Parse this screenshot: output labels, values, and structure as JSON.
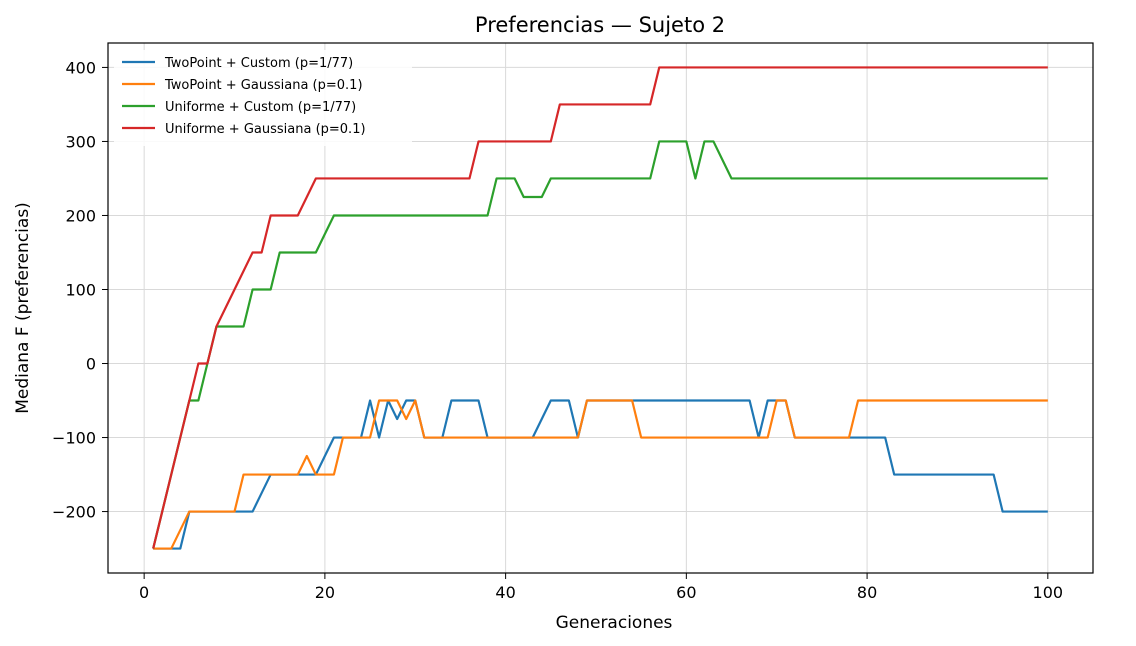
{
  "chart_data": {
    "type": "line",
    "title": "Preferencias — Sujeto 2",
    "xlabel": "Generaciones",
    "ylabel": "Mediana F (preferencias)",
    "xlim": [
      -4,
      105
    ],
    "ylim": [
      -283,
      433
    ],
    "xticks": [
      0,
      20,
      40,
      60,
      80,
      100
    ],
    "yticks": [
      -200,
      -100,
      0,
      100,
      200,
      300,
      400
    ],
    "grid": true,
    "legend_position": "upper-left",
    "series": [
      {
        "name": "TwoPoint + Custom (p=1/77)",
        "color": "#1f77b4",
        "points": [
          [
            1,
            -250
          ],
          [
            2,
            -250
          ],
          [
            3,
            -250
          ],
          [
            4,
            -250
          ],
          [
            5,
            -200
          ],
          [
            6,
            -200
          ],
          [
            7,
            -200
          ],
          [
            8,
            -200
          ],
          [
            9,
            -200
          ],
          [
            10,
            -200
          ],
          [
            11,
            -200
          ],
          [
            12,
            -200
          ],
          [
            13,
            -175
          ],
          [
            14,
            -150
          ],
          [
            15,
            -150
          ],
          [
            16,
            -150
          ],
          [
            17,
            -150
          ],
          [
            18,
            -150
          ],
          [
            19,
            -150
          ],
          [
            20,
            -125
          ],
          [
            21,
            -100
          ],
          [
            22,
            -100
          ],
          [
            23,
            -100
          ],
          [
            24,
            -100
          ],
          [
            25,
            -50
          ],
          [
            26,
            -100
          ],
          [
            27,
            -50
          ],
          [
            28,
            -75
          ],
          [
            29,
            -50
          ],
          [
            30,
            -50
          ],
          [
            31,
            -100
          ],
          [
            32,
            -100
          ],
          [
            33,
            -100
          ],
          [
            34,
            -50
          ],
          [
            35,
            -50
          ],
          [
            36,
            -50
          ],
          [
            37,
            -50
          ],
          [
            38,
            -100
          ],
          [
            39,
            -100
          ],
          [
            40,
            -100
          ],
          [
            41,
            -100
          ],
          [
            42,
            -100
          ],
          [
            43,
            -100
          ],
          [
            44,
            -75
          ],
          [
            45,
            -50
          ],
          [
            46,
            -50
          ],
          [
            47,
            -50
          ],
          [
            48,
            -100
          ],
          [
            48.01,
            -100
          ],
          [
            49,
            -50
          ],
          [
            50,
            -50
          ],
          [
            51,
            -50
          ],
          [
            52,
            -50
          ],
          [
            53,
            -50
          ],
          [
            54,
            -50
          ],
          [
            55,
            -50
          ],
          [
            56,
            -50
          ],
          [
            57,
            -50
          ],
          [
            58,
            -50
          ],
          [
            59,
            -50
          ],
          [
            60,
            -50
          ],
          [
            61,
            -50
          ],
          [
            62,
            -50
          ],
          [
            63,
            -50
          ],
          [
            64,
            -50
          ],
          [
            65,
            -50
          ],
          [
            66,
            -50
          ],
          [
            67,
            -50
          ],
          [
            68,
            -100
          ],
          [
            69,
            -50
          ],
          [
            70,
            -50
          ],
          [
            71,
            -50
          ],
          [
            72,
            -100
          ],
          [
            73,
            -100
          ],
          [
            74,
            -100
          ],
          [
            75,
            -100
          ],
          [
            76,
            -100
          ],
          [
            77,
            -100
          ],
          [
            78,
            -100
          ],
          [
            79,
            -100
          ],
          [
            80,
            -100
          ],
          [
            81,
            -100
          ],
          [
            82,
            -100
          ],
          [
            83,
            -150
          ],
          [
            84,
            -150
          ],
          [
            85,
            -150
          ],
          [
            86,
            -150
          ],
          [
            87,
            -150
          ],
          [
            88,
            -150
          ],
          [
            89,
            -150
          ],
          [
            90,
            -150
          ],
          [
            91,
            -150
          ],
          [
            92,
            -150
          ],
          [
            93,
            -150
          ],
          [
            94,
            -150
          ],
          [
            95,
            -200
          ],
          [
            96,
            -200
          ],
          [
            97,
            -200
          ],
          [
            98,
            -200
          ],
          [
            99,
            -200
          ],
          [
            100,
            -200
          ]
        ]
      },
      {
        "name": "TwoPoint + Gaussiana (p=0.1)",
        "color": "#ff7f0e",
        "points": [
          [
            1,
            -250
          ],
          [
            2,
            -250
          ],
          [
            3,
            -250
          ],
          [
            4,
            -225
          ],
          [
            5,
            -200
          ],
          [
            6,
            -200
          ],
          [
            7,
            -200
          ],
          [
            8,
            -200
          ],
          [
            9,
            -200
          ],
          [
            10,
            -200
          ],
          [
            11,
            -150
          ],
          [
            12,
            -150
          ],
          [
            13,
            -150
          ],
          [
            14,
            -150
          ],
          [
            15,
            -150
          ],
          [
            16,
            -150
          ],
          [
            17,
            -150
          ],
          [
            18,
            -125
          ],
          [
            19,
            -150
          ],
          [
            20,
            -150
          ],
          [
            21,
            -150
          ],
          [
            22,
            -100
          ],
          [
            23,
            -100
          ],
          [
            24,
            -100
          ],
          [
            25,
            -100
          ],
          [
            26,
            -50
          ],
          [
            27,
            -50
          ],
          [
            28,
            -50
          ],
          [
            29,
            -75
          ],
          [
            30,
            -50
          ],
          [
            31,
            -100
          ],
          [
            32,
            -100
          ],
          [
            33,
            -100
          ],
          [
            34,
            -100
          ],
          [
            35,
            -100
          ],
          [
            36,
            -100
          ],
          [
            37,
            -100
          ],
          [
            38,
            -100
          ],
          [
            39,
            -100
          ],
          [
            40,
            -100
          ],
          [
            41,
            -100
          ],
          [
            42,
            -100
          ],
          [
            43,
            -100
          ],
          [
            44,
            -100
          ],
          [
            45,
            -100
          ],
          [
            46,
            -100
          ],
          [
            47,
            -100
          ],
          [
            48,
            -100
          ],
          [
            49,
            -50
          ],
          [
            50,
            -50
          ],
          [
            51,
            -50
          ],
          [
            52,
            -50
          ],
          [
            53,
            -50
          ],
          [
            54,
            -50
          ],
          [
            55,
            -100
          ],
          [
            56,
            -100
          ],
          [
            57,
            -100
          ],
          [
            58,
            -100
          ],
          [
            59,
            -100
          ],
          [
            60,
            -100
          ],
          [
            61,
            -100
          ],
          [
            62,
            -100
          ],
          [
            63,
            -100
          ],
          [
            64,
            -100
          ],
          [
            65,
            -100
          ],
          [
            66,
            -100
          ],
          [
            67,
            -100
          ],
          [
            68,
            -100
          ],
          [
            69,
            -100
          ],
          [
            70,
            -50
          ],
          [
            71,
            -50
          ],
          [
            72,
            -100
          ],
          [
            73,
            -100
          ],
          [
            74,
            -100
          ],
          [
            75,
            -100
          ],
          [
            76,
            -100
          ],
          [
            77,
            -100
          ],
          [
            78,
            -100
          ],
          [
            79,
            -50
          ],
          [
            80,
            -50
          ],
          [
            81,
            -50
          ],
          [
            82,
            -50
          ],
          [
            83,
            -50
          ],
          [
            84,
            -50
          ],
          [
            85,
            -50
          ],
          [
            86,
            -50
          ],
          [
            87,
            -50
          ],
          [
            88,
            -50
          ],
          [
            89,
            -50
          ],
          [
            90,
            -50
          ],
          [
            91,
            -50
          ],
          [
            92,
            -50
          ],
          [
            93,
            -50
          ],
          [
            94,
            -50
          ],
          [
            95,
            -50
          ],
          [
            96,
            -50
          ],
          [
            97,
            -50
          ],
          [
            98,
            -50
          ],
          [
            99,
            -50
          ],
          [
            100,
            -50
          ]
        ]
      },
      {
        "name": "Uniforme + Custom (p=1/77)",
        "color": "#2ca02c",
        "points": [
          [
            1,
            -250
          ],
          [
            2,
            -200
          ],
          [
            3,
            -150
          ],
          [
            4,
            -100
          ],
          [
            5,
            -50
          ],
          [
            6,
            -50
          ],
          [
            7,
            0
          ],
          [
            8,
            50
          ],
          [
            9,
            50
          ],
          [
            10,
            50
          ],
          [
            11,
            50
          ],
          [
            12,
            100
          ],
          [
            13,
            100
          ],
          [
            14,
            100
          ],
          [
            15,
            150
          ],
          [
            16,
            150
          ],
          [
            17,
            150
          ],
          [
            18,
            150
          ],
          [
            19,
            150
          ],
          [
            20,
            175
          ],
          [
            21,
            200
          ],
          [
            22,
            200
          ],
          [
            23,
            200
          ],
          [
            24,
            200
          ],
          [
            25,
            200
          ],
          [
            26,
            200
          ],
          [
            27,
            200
          ],
          [
            28,
            200
          ],
          [
            29,
            200
          ],
          [
            30,
            200
          ],
          [
            31,
            200
          ],
          [
            32,
            200
          ],
          [
            33,
            200
          ],
          [
            34,
            200
          ],
          [
            35,
            200
          ],
          [
            36,
            200
          ],
          [
            37,
            200
          ],
          [
            38,
            200
          ],
          [
            39,
            250
          ],
          [
            40,
            250
          ],
          [
            41,
            250
          ],
          [
            42,
            225
          ],
          [
            43,
            225
          ],
          [
            44,
            225
          ],
          [
            45,
            250
          ],
          [
            46,
            250
          ],
          [
            47,
            250
          ],
          [
            48,
            250
          ],
          [
            49,
            250
          ],
          [
            50,
            250
          ],
          [
            51,
            250
          ],
          [
            52,
            250
          ],
          [
            53,
            250
          ],
          [
            54,
            250
          ],
          [
            55,
            250
          ],
          [
            56,
            250
          ],
          [
            57,
            300
          ],
          [
            58,
            300
          ],
          [
            59,
            300
          ],
          [
            60,
            300
          ],
          [
            61,
            250
          ],
          [
            62,
            300
          ],
          [
            63,
            300
          ],
          [
            64,
            275
          ],
          [
            65,
            250
          ],
          [
            66,
            250
          ],
          [
            67,
            250
          ],
          [
            68,
            250
          ],
          [
            69,
            250
          ],
          [
            70,
            250
          ],
          [
            80,
            250
          ],
          [
            90,
            250
          ],
          [
            100,
            250
          ]
        ]
      },
      {
        "name": "Uniforme + Gaussiana (p=0.1)",
        "color": "#d62728",
        "points": [
          [
            1,
            -250
          ],
          [
            2,
            -200
          ],
          [
            3,
            -150
          ],
          [
            4,
            -100
          ],
          [
            5,
            -50
          ],
          [
            6,
            0
          ],
          [
            7,
            0
          ],
          [
            8,
            50
          ],
          [
            9,
            75
          ],
          [
            10,
            100
          ],
          [
            11,
            125
          ],
          [
            12,
            150
          ],
          [
            13,
            150
          ],
          [
            14,
            200
          ],
          [
            15,
            200
          ],
          [
            16,
            200
          ],
          [
            17,
            200
          ],
          [
            18,
            225
          ],
          [
            19,
            250
          ],
          [
            20,
            250
          ],
          [
            21,
            250
          ],
          [
            25,
            250
          ],
          [
            30,
            250
          ],
          [
            35,
            250
          ],
          [
            36,
            250
          ],
          [
            37,
            300
          ],
          [
            38,
            300
          ],
          [
            39,
            300
          ],
          [
            40,
            300
          ],
          [
            41,
            300
          ],
          [
            42,
            300
          ],
          [
            43,
            300
          ],
          [
            44,
            300
          ],
          [
            45,
            300
          ],
          [
            46,
            350
          ],
          [
            47,
            350
          ],
          [
            48,
            350
          ],
          [
            49,
            350
          ],
          [
            50,
            350
          ],
          [
            51,
            350
          ],
          [
            52,
            350
          ],
          [
            53,
            350
          ],
          [
            54,
            350
          ],
          [
            55,
            350
          ],
          [
            56,
            350
          ],
          [
            57,
            400
          ],
          [
            58,
            400
          ],
          [
            60,
            400
          ],
          [
            70,
            400
          ],
          [
            80,
            400
          ],
          [
            90,
            400
          ],
          [
            100,
            400
          ]
        ]
      }
    ]
  }
}
